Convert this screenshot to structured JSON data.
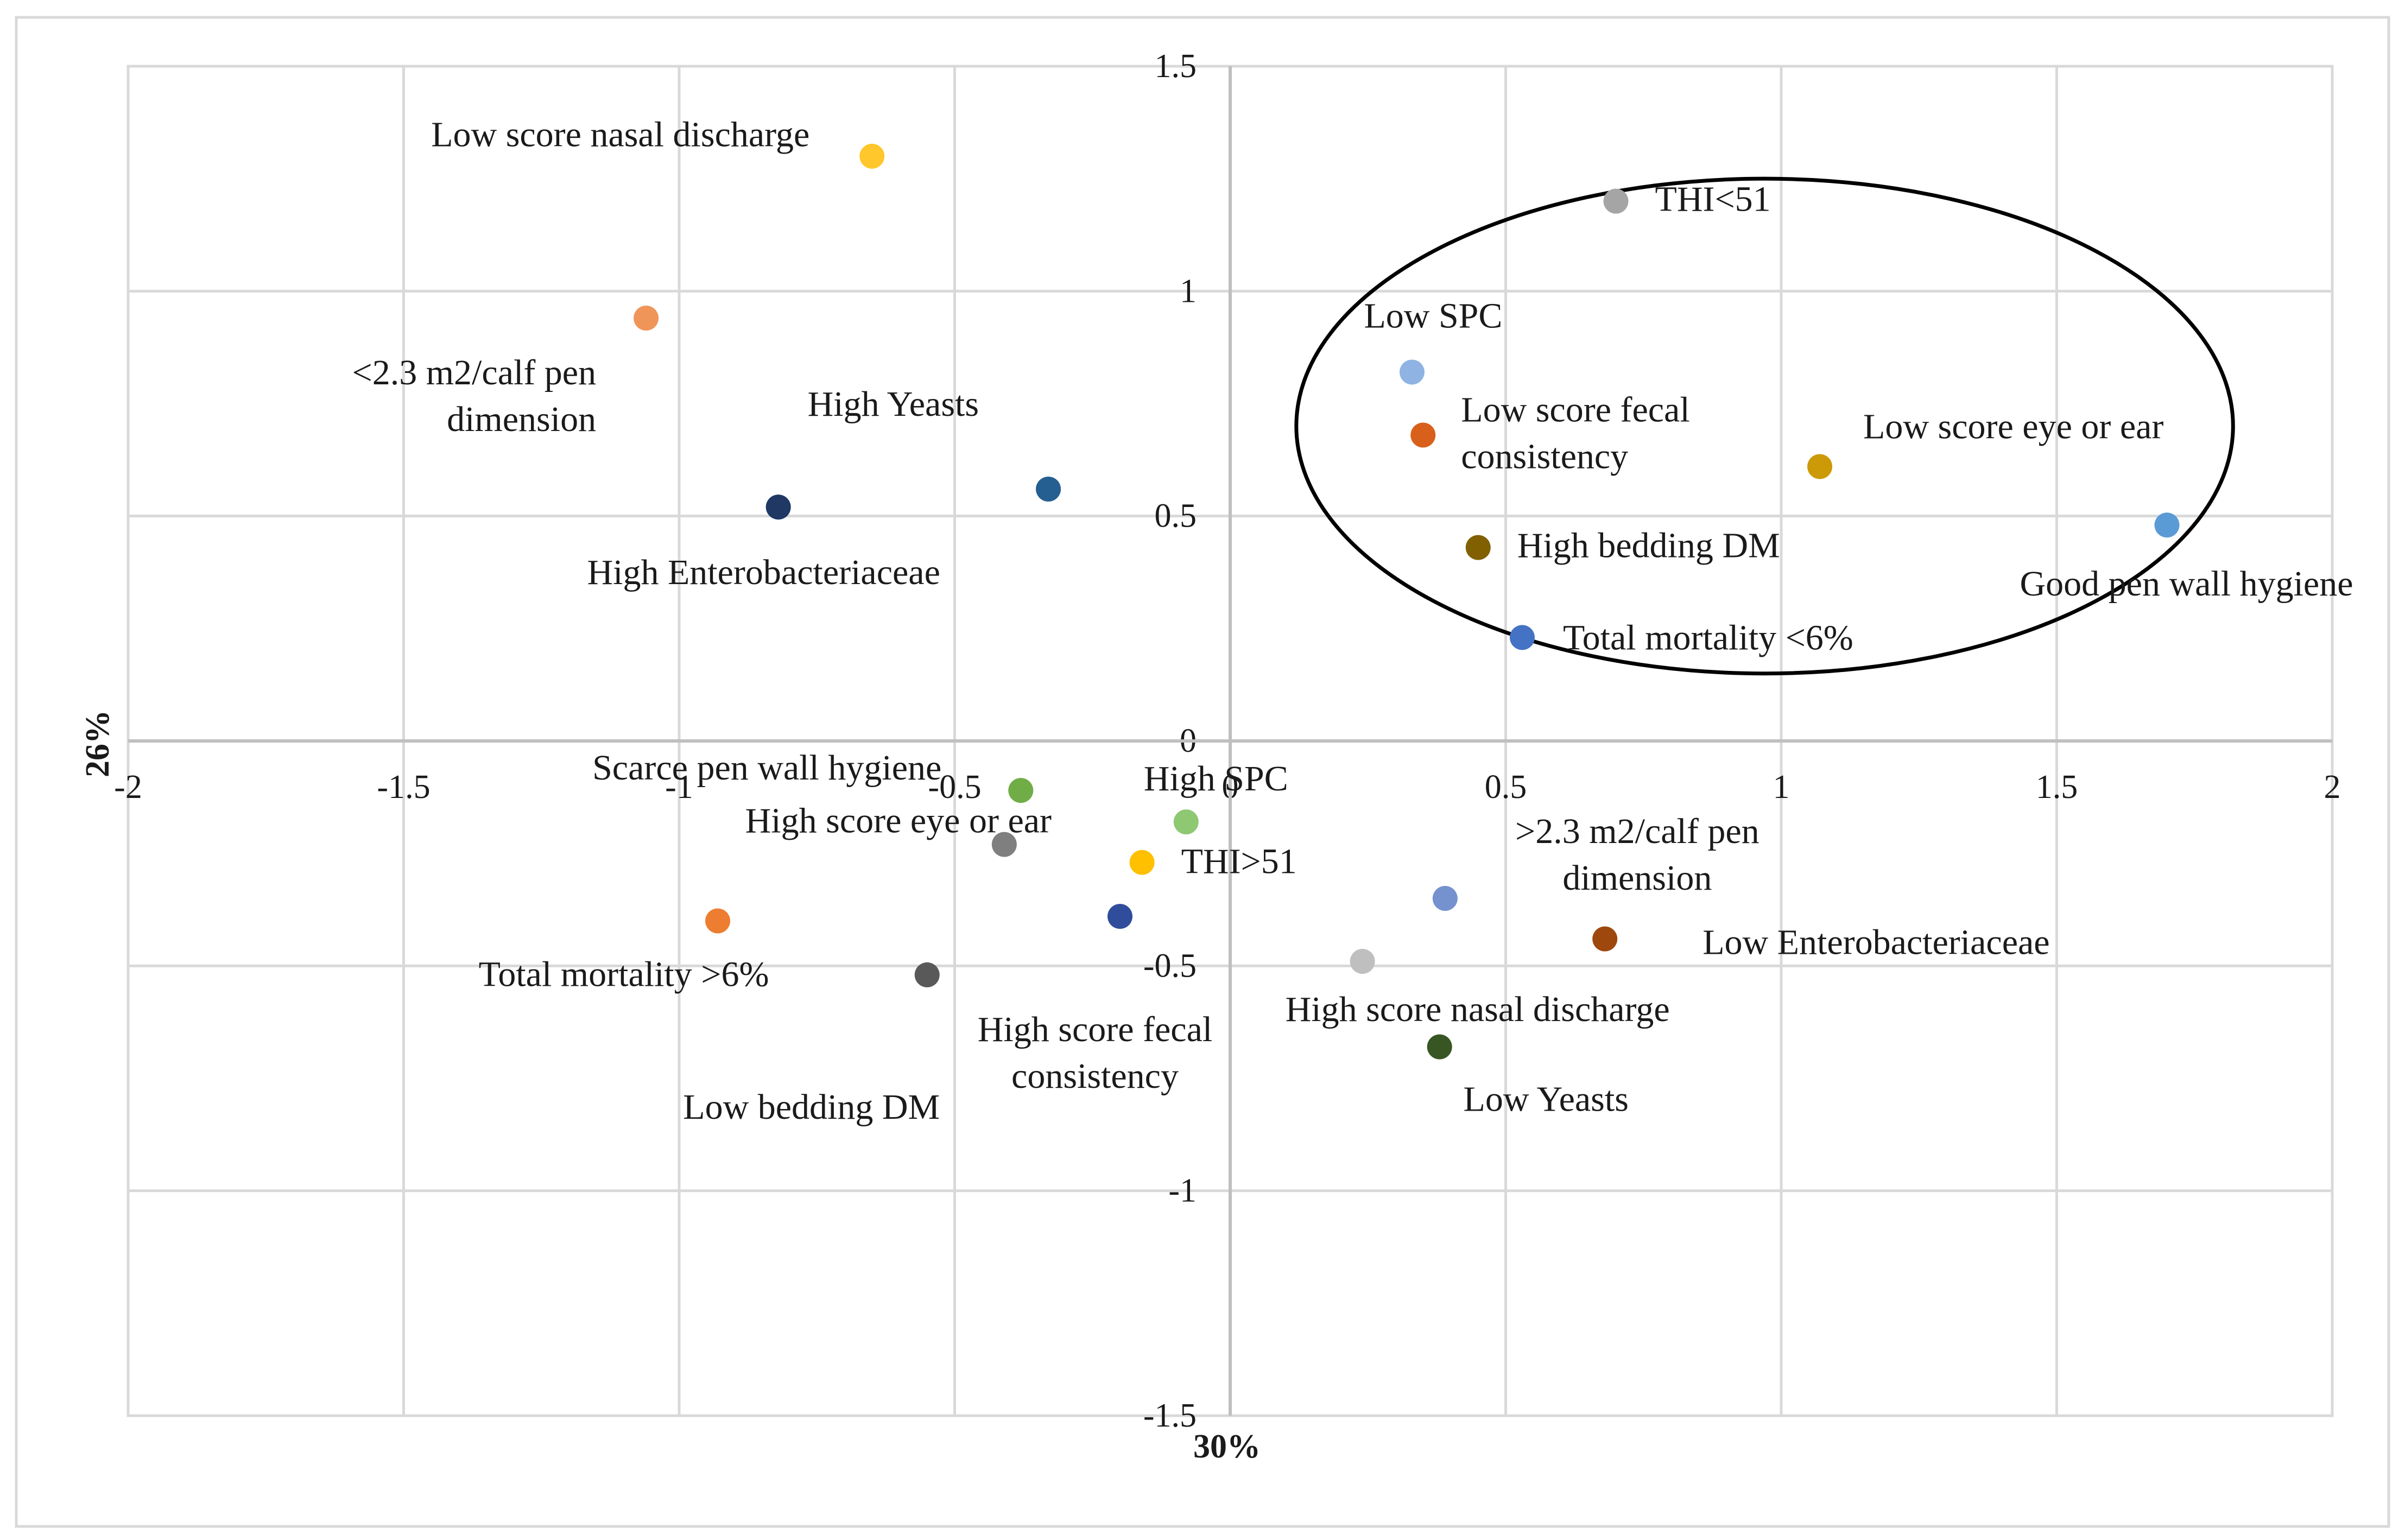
{
  "chart_data": {
    "type": "scatter",
    "xlabel": "30%",
    "ylabel": "26%",
    "xlim": [
      -2,
      2
    ],
    "ylim": [
      -1.5,
      1.5
    ],
    "x_ticks": [
      "-2",
      "-1.5",
      "-1",
      "-0.5",
      "0",
      "0.5",
      "1",
      "1.5",
      "2"
    ],
    "y_ticks": [
      "1.5",
      "1",
      "0.5",
      "0",
      "-0.5",
      "-1",
      "-1.5"
    ],
    "grid": true,
    "annotations": [
      {
        "type": "ellipse",
        "center": [
          0.97,
          0.7
        ],
        "radii": [
          0.85,
          0.55
        ]
      }
    ],
    "points": [
      {
        "label": "Low score nasal discharge",
        "x": -0.65,
        "y": 1.3,
        "color": "#ffc72c"
      },
      {
        "label": "<2.3 m2/calf pen\ndimension",
        "x": -1.06,
        "y": 0.94,
        "color": "#f0955a"
      },
      {
        "label": "High Yeasts",
        "x": -0.33,
        "y": 0.56,
        "color": "#255e91"
      },
      {
        "label": "High Enterobacteriaceae",
        "x": -0.82,
        "y": 0.52,
        "color": "#1f3864"
      },
      {
        "label": "THI<51",
        "x": 0.7,
        "y": 1.2,
        "color": "#a5a5a5"
      },
      {
        "label": "Low SPC",
        "x": 0.33,
        "y": 0.82,
        "color": "#8fb4e3"
      },
      {
        "label": "Low score fecal\nconsistency",
        "x": 0.35,
        "y": 0.68,
        "color": "#d9601a"
      },
      {
        "label": "Low score eye or ear",
        "x": 1.07,
        "y": 0.61,
        "color": "#cc9a06"
      },
      {
        "label": "High bedding DM",
        "x": 0.45,
        "y": 0.43,
        "color": "#806000"
      },
      {
        "label": "Good pen wall hygiene",
        "x": 1.7,
        "y": 0.48,
        "color": "#5b9bd5"
      },
      {
        "label": "Total mortality <6%",
        "x": 0.53,
        "y": 0.23,
        "color": "#4472c4"
      },
      {
        "label": "Scarce pen wall hygiene",
        "x": -0.38,
        "y": -0.11,
        "color": "#70ad47"
      },
      {
        "label": "High SPC",
        "x": -0.08,
        "y": -0.18,
        "color": "#8fc872"
      },
      {
        "label": "High score eye or ear",
        "x": -0.41,
        "y": -0.23,
        "color": "#7f7f7f"
      },
      {
        "label": "THI>51",
        "x": -0.16,
        "y": -0.27,
        "color": "#ffc000"
      },
      {
        "label": "Total mortality >6%",
        "x": -0.93,
        "y": -0.4,
        "color": "#ed7d31"
      },
      {
        "label": "High score fecal\nconsistency",
        "x": -0.2,
        "y": -0.39,
        "color": "#2f4d9b"
      },
      {
        "label": "Low bedding DM",
        "x": -0.55,
        "y": -0.52,
        "color": "#595959"
      },
      {
        "label": ">2.3 m2/calf pen\ndimension",
        "x": 0.39,
        "y": -0.35,
        "color": "#7592cf"
      },
      {
        "label": "Low Enterobacteriaceae",
        "x": 0.68,
        "y": -0.44,
        "color": "#9e480e"
      },
      {
        "label": "High score nasal discharge",
        "x": 0.24,
        "y": -0.49,
        "color": "#bfbfbf"
      },
      {
        "label": "Low Yeasts",
        "x": 0.38,
        "y": -0.68,
        "color": "#375623"
      }
    ]
  }
}
